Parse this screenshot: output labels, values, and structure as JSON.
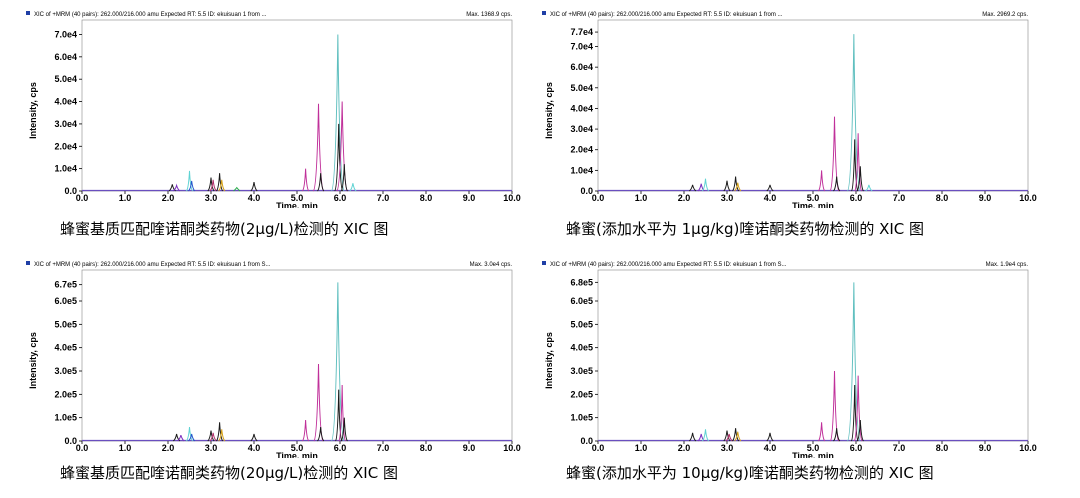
{
  "panels": [
    {
      "header": "XIC of +MRM (40 pairs): 262.000/216.000 amu Expected RT: 5.5 ID: ekuisuan 1 from ...",
      "max_label": "Max. 1368.9 cps.",
      "caption": "蜂蜜基质匹配喹诺酮类药物(2μg/L)检测的 XIC 图"
    },
    {
      "header": "XIC of +MRM (40 pairs): 262.000/216.000 amu Expected RT: 5.5 ID: ekuisuan 1 from ...",
      "max_label": "Max. 2969.2 cps.",
      "caption": "蜂蜜(添加水平为 1μg/kg)喹诺酮类药物检测的 XIC 图"
    },
    {
      "header": "XIC of +MRM (40 pairs): 262.000/216.000 amu Expected RT: 5.5 ID: ekuisuan 1 from S...",
      "max_label": "Max. 3.0e4 cps.",
      "caption": "蜂蜜基质匹配喹诺酮类药物(20μg/L)检测的 XIC 图"
    },
    {
      "header": "XIC of +MRM (40 pairs): 262.000/216.000 amu Expected RT: 5.5 ID: ekuisuan 1 from S...",
      "max_label": "Max. 1.9e4 cps.",
      "caption": "蜂蜜(添加水平为 10μg/kg)喹诺酮类药物检测的 XIC 图"
    }
  ],
  "chart_data": [
    {
      "type": "line",
      "xlabel": "Time, min",
      "ylabel": "Intensity, cps",
      "xlim": [
        0,
        10
      ],
      "ylim": [
        0,
        72000
      ],
      "x_ticks": [
        "0.0",
        "1.0",
        "2.0",
        "3.0",
        "4.0",
        "5.0",
        "6.0",
        "7.0",
        "8.0",
        "9.0",
        "10.0"
      ],
      "y_ticks": [
        {
          "value": 70000,
          "label": "7.0e4"
        },
        {
          "value": 60000,
          "label": "6.0e4"
        },
        {
          "value": 50000,
          "label": "5.0e4"
        },
        {
          "value": 40000,
          "label": "4.0e4"
        },
        {
          "value": 30000,
          "label": "3.0e4"
        },
        {
          "value": 20000,
          "label": "2.0e4"
        },
        {
          "value": 10000,
          "label": "1.0e4"
        },
        {
          "value": 0,
          "label": "0.0"
        }
      ],
      "peaks": [
        {
          "rt": 2.1,
          "height": 3000,
          "color": "#1a1a1a"
        },
        {
          "rt": 2.2,
          "height": 2500,
          "color": "#7b2fbf"
        },
        {
          "rt": 2.5,
          "height": 9000,
          "color": "#5fd3d3"
        },
        {
          "rt": 2.55,
          "height": 4500,
          "color": "#2255cc"
        },
        {
          "rt": 3.0,
          "height": 6000,
          "color": "#1a1a1a"
        },
        {
          "rt": 3.05,
          "height": 5000,
          "color": "#b0306a"
        },
        {
          "rt": 3.2,
          "height": 8000,
          "color": "#1a1a1a"
        },
        {
          "rt": 3.25,
          "height": 5000,
          "color": "#d4a017"
        },
        {
          "rt": 3.6,
          "height": 1500,
          "color": "#22aa44"
        },
        {
          "rt": 4.0,
          "height": 4000,
          "color": "#1a1a1a"
        },
        {
          "rt": 5.2,
          "height": 10000,
          "color": "#c0309a"
        },
        {
          "rt": 5.5,
          "height": 39000,
          "color": "#c0309a"
        },
        {
          "rt": 5.55,
          "height": 8000,
          "color": "#1a1a1a"
        },
        {
          "rt": 5.95,
          "height": 70000,
          "color": "#5fbfbf"
        },
        {
          "rt": 5.97,
          "height": 30000,
          "color": "#1a1a1a"
        },
        {
          "rt": 6.05,
          "height": 40000,
          "color": "#c0309a"
        },
        {
          "rt": 6.1,
          "height": 12000,
          "color": "#1a1a1a"
        },
        {
          "rt": 6.3,
          "height": 3500,
          "color": "#5fd3d3"
        }
      ]
    },
    {
      "type": "line",
      "xlabel": "Time, min",
      "ylabel": "Intensity, cps",
      "xlim": [
        0,
        10
      ],
      "ylim": [
        0,
        78000
      ],
      "x_ticks": [
        "0.0",
        "1.0",
        "2.0",
        "3.0",
        "4.0",
        "5.0",
        "6.0",
        "7.0",
        "8.0",
        "9.0",
        "10.0"
      ],
      "y_ticks": [
        {
          "value": 77000,
          "label": "7.7e4"
        },
        {
          "value": 70000,
          "label": "7.0e4"
        },
        {
          "value": 60000,
          "label": "6.0e4"
        },
        {
          "value": 50000,
          "label": "5.0e4"
        },
        {
          "value": 40000,
          "label": "4.0e4"
        },
        {
          "value": 30000,
          "label": "3.0e4"
        },
        {
          "value": 20000,
          "label": "2.0e4"
        },
        {
          "value": 10000,
          "label": "1.0e4"
        },
        {
          "value": 0,
          "label": "0.0"
        }
      ],
      "peaks": [
        {
          "rt": 2.2,
          "height": 3000,
          "color": "#1a1a1a"
        },
        {
          "rt": 2.4,
          "height": 3500,
          "color": "#7b2fbf"
        },
        {
          "rt": 2.5,
          "height": 6000,
          "color": "#5fd3d3"
        },
        {
          "rt": 3.0,
          "height": 5000,
          "color": "#1a1a1a"
        },
        {
          "rt": 3.2,
          "height": 7000,
          "color": "#1a1a1a"
        },
        {
          "rt": 3.25,
          "height": 4000,
          "color": "#d4a017"
        },
        {
          "rt": 4.0,
          "height": 3000,
          "color": "#1a1a1a"
        },
        {
          "rt": 5.2,
          "height": 10000,
          "color": "#c0309a"
        },
        {
          "rt": 5.5,
          "height": 36000,
          "color": "#c0309a"
        },
        {
          "rt": 5.55,
          "height": 7000,
          "color": "#1a1a1a"
        },
        {
          "rt": 5.95,
          "height": 76000,
          "color": "#5fbfbf"
        },
        {
          "rt": 5.97,
          "height": 25000,
          "color": "#1a1a1a"
        },
        {
          "rt": 6.05,
          "height": 28000,
          "color": "#c0309a"
        },
        {
          "rt": 6.1,
          "height": 12000,
          "color": "#1a1a1a"
        },
        {
          "rt": 6.3,
          "height": 3000,
          "color": "#5fd3d3"
        }
      ]
    },
    {
      "type": "line",
      "xlabel": "Time, min",
      "ylabel": "Intensity, cps",
      "xlim": [
        0,
        10
      ],
      "ylim": [
        0,
        690000
      ],
      "x_ticks": [
        "0.0",
        "1.0",
        "2.0",
        "3.0",
        "4.0",
        "5.0",
        "6.0",
        "7.0",
        "8.0",
        "9.0",
        "10.0"
      ],
      "y_ticks": [
        {
          "value": 670000,
          "label": "6.7e5"
        },
        {
          "value": 600000,
          "label": "6.0e5"
        },
        {
          "value": 500000,
          "label": "5.0e5"
        },
        {
          "value": 400000,
          "label": "4.0e5"
        },
        {
          "value": 300000,
          "label": "3.0e5"
        },
        {
          "value": 200000,
          "label": "2.0e5"
        },
        {
          "value": 100000,
          "label": "1.0e5"
        },
        {
          "value": 0,
          "label": "0.0"
        }
      ],
      "peaks": [
        {
          "rt": 2.2,
          "height": 30000,
          "color": "#1a1a1a"
        },
        {
          "rt": 2.3,
          "height": 25000,
          "color": "#7b2fbf"
        },
        {
          "rt": 2.5,
          "height": 60000,
          "color": "#5fd3d3"
        },
        {
          "rt": 2.55,
          "height": 30000,
          "color": "#2255cc"
        },
        {
          "rt": 3.0,
          "height": 45000,
          "color": "#1a1a1a"
        },
        {
          "rt": 3.05,
          "height": 35000,
          "color": "#b0306a"
        },
        {
          "rt": 3.2,
          "height": 80000,
          "color": "#1a1a1a"
        },
        {
          "rt": 3.25,
          "height": 50000,
          "color": "#d4a017"
        },
        {
          "rt": 4.0,
          "height": 30000,
          "color": "#1a1a1a"
        },
        {
          "rt": 5.2,
          "height": 90000,
          "color": "#c0309a"
        },
        {
          "rt": 5.5,
          "height": 330000,
          "color": "#c0309a"
        },
        {
          "rt": 5.55,
          "height": 60000,
          "color": "#1a1a1a"
        },
        {
          "rt": 5.95,
          "height": 680000,
          "color": "#5fbfbf"
        },
        {
          "rt": 5.97,
          "height": 220000,
          "color": "#1a1a1a"
        },
        {
          "rt": 6.05,
          "height": 240000,
          "color": "#c0309a"
        },
        {
          "rt": 6.1,
          "height": 100000,
          "color": "#1a1a1a"
        }
      ]
    },
    {
      "type": "line",
      "xlabel": "Time, min",
      "ylabel": "Intensity, cps",
      "xlim": [
        0,
        10
      ],
      "ylim": [
        0,
        690000
      ],
      "x_ticks": [
        "0.0",
        "1.0",
        "2.0",
        "3.0",
        "4.0",
        "5.0",
        "6.0",
        "7.0",
        "8.0",
        "9.0",
        "10.0"
      ],
      "y_ticks": [
        {
          "value": 680000,
          "label": "6.8e5"
        },
        {
          "value": 600000,
          "label": "6.0e5"
        },
        {
          "value": 500000,
          "label": "5.0e5"
        },
        {
          "value": 400000,
          "label": "4.0e5"
        },
        {
          "value": 300000,
          "label": "3.0e5"
        },
        {
          "value": 200000,
          "label": "2.0e5"
        },
        {
          "value": 100000,
          "label": "1.0e5"
        },
        {
          "value": 0,
          "label": "0.0"
        }
      ],
      "peaks": [
        {
          "rt": 2.2,
          "height": 35000,
          "color": "#1a1a1a"
        },
        {
          "rt": 2.4,
          "height": 30000,
          "color": "#7b2fbf"
        },
        {
          "rt": 2.5,
          "height": 50000,
          "color": "#5fd3d3"
        },
        {
          "rt": 3.0,
          "height": 45000,
          "color": "#1a1a1a"
        },
        {
          "rt": 3.05,
          "height": 30000,
          "color": "#b0306a"
        },
        {
          "rt": 3.2,
          "height": 55000,
          "color": "#1a1a1a"
        },
        {
          "rt": 3.25,
          "height": 40000,
          "color": "#d4a017"
        },
        {
          "rt": 4.0,
          "height": 35000,
          "color": "#1a1a1a"
        },
        {
          "rt": 5.2,
          "height": 80000,
          "color": "#c0309a"
        },
        {
          "rt": 5.5,
          "height": 300000,
          "color": "#c0309a"
        },
        {
          "rt": 5.55,
          "height": 55000,
          "color": "#1a1a1a"
        },
        {
          "rt": 5.95,
          "height": 680000,
          "color": "#5fbfbf"
        },
        {
          "rt": 5.97,
          "height": 240000,
          "color": "#1a1a1a"
        },
        {
          "rt": 6.05,
          "height": 280000,
          "color": "#c0309a"
        },
        {
          "rt": 6.1,
          "height": 90000,
          "color": "#1a1a1a"
        }
      ]
    }
  ]
}
